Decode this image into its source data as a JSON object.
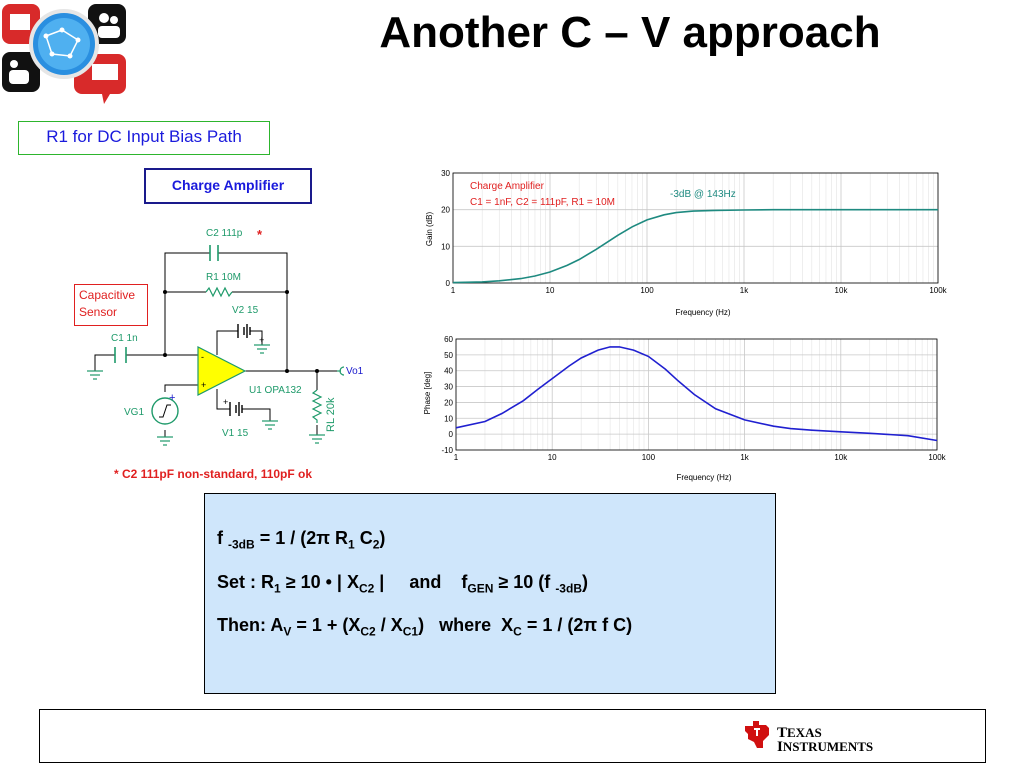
{
  "slide": {
    "title": "Another C – V approach",
    "r1_note": "R1 for DC Input Bias Path",
    "charge_amp_label": "Charge Amplifier",
    "footnote": "* C2 111pF non-standard, 110pF ok"
  },
  "schematic": {
    "sensor_line1": "Capacitive",
    "sensor_line2": "Sensor",
    "c2_label": "C2 111p",
    "c2_star": "*",
    "r1_label": "R1 10M",
    "v2_label": "V2 15",
    "c1_label": "C1 1n",
    "vo1_label": "Vo1",
    "u1_label": "U1 OPA132",
    "vg1_label": "VG1",
    "v1_label": "V1 15",
    "rl_label": "RL 20k"
  },
  "equations": {
    "line1": {
      "f": "f",
      "sub_3db": "-3dB",
      "mid": "= 1 / (2π R",
      "sub_1": "1",
      "c": " C",
      "sub_2": "2",
      "end": ")"
    },
    "line2": {
      "a": "Set : R",
      "sub_1": "1",
      "b": " ≥ 10 • | X",
      "sub_c2": "C2",
      "c": " |",
      "and": "and",
      "f": "f",
      "sub_gen": "GEN",
      "d": " ≥ 10 (f ",
      "sub_3db": "-3dB",
      "e": ")"
    },
    "line3": {
      "a": "Then: A",
      "sub_v": "V",
      "b": " = 1 + (X",
      "sub_c2": "C2",
      "c": " / X",
      "sub_c1": "C1",
      "d": ")",
      "where": "where",
      "e": "X",
      "sub_c": "C",
      "f": " = 1 / (2π f C)"
    }
  },
  "footer": {
    "brand_line1_first": "T",
    "brand_line1_rest": "EXAS",
    "brand_line2_first": "I",
    "brand_line2_rest": "NSTRUMENTS"
  },
  "colors": {
    "gain_curve": "#1e8a80",
    "phase_curve": "#2020d0",
    "annotation_red": "#e02020",
    "opamp_fill": "#ffff00",
    "eq_box_bg": "#cfe6fb"
  },
  "chart_data": [
    {
      "type": "line",
      "ylabel": "Gain (dB)",
      "xlabel": "Frequency (Hz)",
      "x_scale": "log",
      "xlim": [
        1,
        100000
      ],
      "ylim": [
        0,
        30
      ],
      "x_ticks": [
        "1",
        "10",
        "100",
        "1k",
        "10k",
        "100k"
      ],
      "y_ticks": [
        "0",
        "10",
        "20",
        "30"
      ],
      "grid": true,
      "annotations": [
        "Charge Amplifier",
        "C1 = 1nF, C2 = 111pF, R1 = 10M",
        "-3dB @ 143Hz"
      ],
      "series": [
        {
          "x": [
            1,
            2,
            3,
            5,
            7,
            10,
            15,
            20,
            30,
            50,
            70,
            100,
            150,
            200,
            300,
            500,
            1000,
            2000,
            10000,
            100000
          ],
          "values": [
            0.1,
            0.3,
            0.6,
            1.2,
            1.9,
            3.0,
            4.8,
            6.4,
            9.2,
            13.0,
            15.3,
            17.2,
            18.6,
            19.2,
            19.6,
            19.8,
            19.9,
            20.0,
            20.0,
            20.0
          ]
        }
      ]
    },
    {
      "type": "line",
      "ylabel": "Phase [deg]",
      "xlabel": "Frequency (Hz)",
      "x_scale": "log",
      "xlim": [
        1,
        100000
      ],
      "ylim": [
        -10,
        60
      ],
      "x_ticks": [
        "1",
        "10",
        "100",
        "1k",
        "10k",
        "100k"
      ],
      "y_ticks": [
        "-10",
        "0",
        "10",
        "20",
        "30",
        "40",
        "50",
        "60"
      ],
      "grid": true,
      "series": [
        {
          "x": [
            1,
            2,
            3,
            5,
            7,
            10,
            15,
            20,
            30,
            40,
            50,
            70,
            100,
            150,
            200,
            300,
            500,
            1000,
            2000,
            3000,
            5000,
            10000,
            20000,
            50000,
            100000
          ],
          "values": [
            4,
            8,
            13,
            21,
            28,
            35,
            43,
            48,
            53,
            55,
            55,
            53,
            49,
            41,
            34,
            25,
            16,
            9,
            5,
            3.5,
            2.5,
            1.5,
            0.5,
            -1,
            -4
          ]
        }
      ]
    }
  ]
}
